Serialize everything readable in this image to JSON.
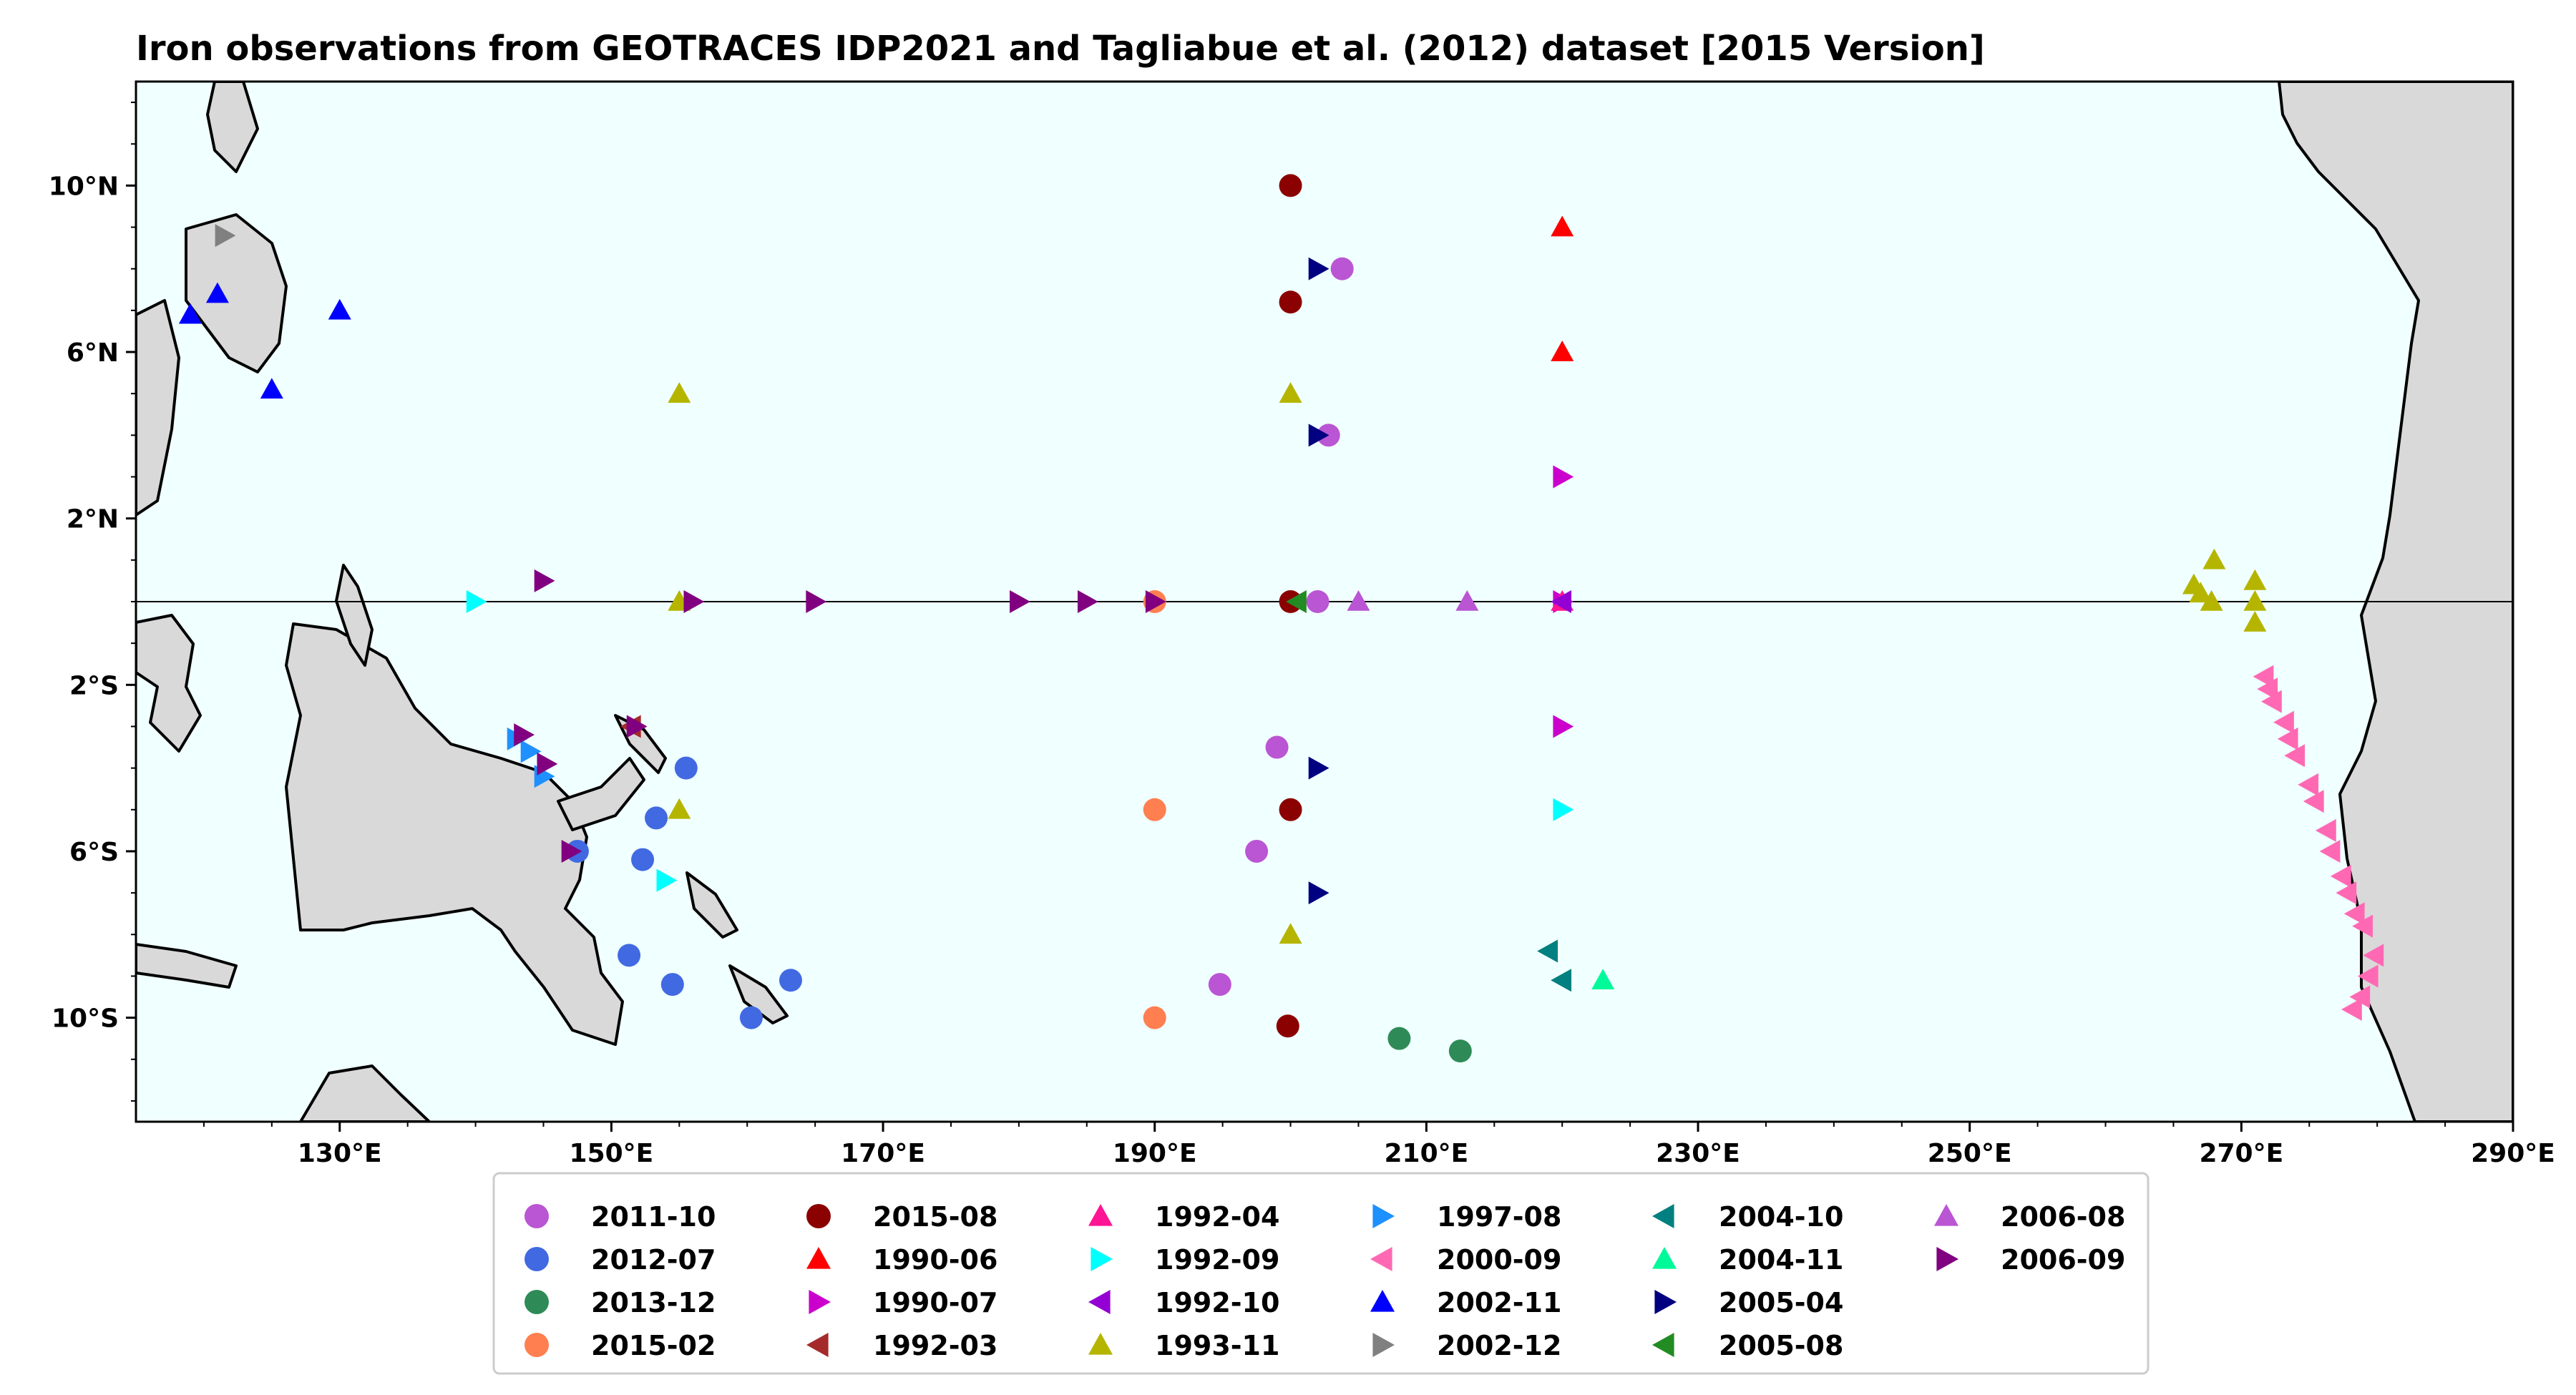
{
  "title": "Iron observations from GEOTRACES IDP2021 and Tagliabue et al. (2012) dataset [2015 Version]",
  "colors": {
    "ocean": "#f0ffff",
    "land": "#d9d9d9",
    "coast": "#000000"
  },
  "chart_data": {
    "type": "scatter",
    "title": "Iron observations from GEOTRACES IDP2021 and Tagliabue et al. (2012) dataset [2015 Version]",
    "xlim": [
      115,
      290
    ],
    "ylim": [
      -12.5,
      12.5
    ],
    "xticks": [
      {
        "value": 130,
        "label": "130°E"
      },
      {
        "value": 150,
        "label": "150°E"
      },
      {
        "value": 170,
        "label": "170°E"
      },
      {
        "value": 190,
        "label": "190°E"
      },
      {
        "value": 210,
        "label": "210°E"
      },
      {
        "value": 230,
        "label": "230°E"
      },
      {
        "value": 250,
        "label": "250°E"
      },
      {
        "value": 270,
        "label": "270°E"
      },
      {
        "value": 290,
        "label": "290°E"
      }
    ],
    "yticks": [
      {
        "value": 10,
        "label": "10°N"
      },
      {
        "value": 6,
        "label": "6°N"
      },
      {
        "value": 2,
        "label": "2°N"
      },
      {
        "value": -2,
        "label": "2°S"
      },
      {
        "value": -6,
        "label": "6°S"
      },
      {
        "value": -10,
        "label": "10°S"
      }
    ],
    "equator_line": 0,
    "legend_position": "bottom-center",
    "series": [
      {
        "name": "2011-10",
        "color": "#ba55d3",
        "marker": "circle",
        "points": [
          [
            199,
            -3.5
          ],
          [
            197.5,
            -6
          ],
          [
            194.8,
            -9.2
          ],
          [
            203.8,
            8
          ],
          [
            202.8,
            4
          ],
          [
            202,
            0
          ]
        ]
      },
      {
        "name": "2012-07",
        "color": "#4169e1",
        "marker": "circle",
        "points": [
          [
            147.5,
            -6
          ],
          [
            151.3,
            -8.5
          ],
          [
            152.3,
            -6.2
          ],
          [
            153.3,
            -5.2
          ],
          [
            155.5,
            -4
          ],
          [
            154.5,
            -9.2
          ],
          [
            160.3,
            -10
          ],
          [
            163.2,
            -9.1
          ]
        ]
      },
      {
        "name": "2013-12",
        "color": "#2e8b57",
        "marker": "circle",
        "points": [
          [
            208,
            -10.5
          ],
          [
            212.5,
            -10.8
          ]
        ]
      },
      {
        "name": "2015-02",
        "color": "#ff7f50",
        "marker": "circle",
        "points": [
          [
            190,
            -5
          ],
          [
            190,
            -10
          ],
          [
            190,
            0
          ]
        ]
      },
      {
        "name": "2015-08",
        "color": "#8b0000",
        "marker": "circle",
        "points": [
          [
            200,
            10
          ],
          [
            200,
            7.2
          ],
          [
            200,
            0
          ],
          [
            200,
            -5
          ],
          [
            199.8,
            -10.2
          ]
        ]
      },
      {
        "name": "1990-06",
        "color": "#ff0000",
        "marker": "triangle-up",
        "points": [
          [
            220,
            9
          ],
          [
            220,
            6
          ]
        ]
      },
      {
        "name": "1990-07",
        "color": "#cc00cc",
        "marker": "triangle-right",
        "points": [
          [
            220,
            3
          ],
          [
            220,
            -3
          ],
          [
            220,
            0
          ]
        ]
      },
      {
        "name": "1992-03",
        "color": "#a52a2a",
        "marker": "triangle-left",
        "points": [
          [
            151.5,
            -3
          ]
        ]
      },
      {
        "name": "1992-04",
        "color": "#ff1493",
        "marker": "triangle-up",
        "points": [
          [
            220,
            0
          ]
        ]
      },
      {
        "name": "1992-09",
        "color": "#00ffff",
        "marker": "triangle-right",
        "points": [
          [
            140,
            0
          ],
          [
            154,
            -6.7
          ],
          [
            220,
            -5
          ]
        ]
      },
      {
        "name": "1992-10",
        "color": "#9400d3",
        "marker": "triangle-left",
        "points": [
          [
            220,
            0
          ]
        ]
      },
      {
        "name": "1993-11",
        "color": "#b5b500",
        "marker": "triangle-up",
        "points": [
          [
            155,
            5
          ],
          [
            155,
            0
          ],
          [
            155,
            -5
          ],
          [
            200,
            5
          ],
          [
            200,
            -8
          ],
          [
            266.5,
            0.4
          ],
          [
            267,
            0.2
          ],
          [
            268,
            1
          ],
          [
            267.8,
            0
          ],
          [
            271,
            0.5
          ],
          [
            271,
            0
          ],
          [
            271,
            -0.5
          ]
        ]
      },
      {
        "name": "1997-08",
        "color": "#1e90ff",
        "marker": "triangle-right",
        "points": [
          [
            143,
            -3.3
          ],
          [
            144,
            -3.6
          ],
          [
            145,
            -4.2
          ]
        ]
      },
      {
        "name": "2000-09",
        "color": "#ff69b4",
        "marker": "triangle-left",
        "points": [
          [
            271.7,
            -1.8
          ],
          [
            272,
            -2.1
          ],
          [
            272.3,
            -2.4
          ],
          [
            273.2,
            -2.9
          ],
          [
            273.5,
            -3.3
          ],
          [
            274,
            -3.7
          ],
          [
            275,
            -4.4
          ],
          [
            275.4,
            -4.8
          ],
          [
            276.3,
            -5.5
          ],
          [
            276.6,
            -6
          ],
          [
            277.4,
            -6.6
          ],
          [
            277.8,
            -7
          ],
          [
            278.4,
            -7.5
          ],
          [
            279,
            -7.8
          ],
          [
            279.8,
            -8.5
          ],
          [
            279.4,
            -9
          ],
          [
            278.8,
            -9.5
          ],
          [
            278.2,
            -9.8
          ]
        ]
      },
      {
        "name": "2002-11",
        "color": "#0000ff",
        "marker": "triangle-up",
        "points": [
          [
            119,
            6.9
          ],
          [
            121,
            7.4
          ],
          [
            130,
            7
          ],
          [
            125,
            5.1
          ]
        ]
      },
      {
        "name": "2002-12",
        "color": "#808080",
        "marker": "triangle-right",
        "points": [
          [
            121.5,
            8.8
          ]
        ]
      },
      {
        "name": "2004-10",
        "color": "#008080",
        "marker": "triangle-left",
        "points": [
          [
            219,
            -8.4
          ],
          [
            220,
            -9.1
          ]
        ]
      },
      {
        "name": "2004-11",
        "color": "#00fa9a",
        "marker": "triangle-up",
        "points": [
          [
            223,
            -9.1
          ]
        ]
      },
      {
        "name": "2005-04",
        "color": "#000080",
        "marker": "triangle-right",
        "points": [
          [
            202,
            8
          ],
          [
            202,
            4
          ],
          [
            202,
            -4
          ],
          [
            202,
            -7
          ]
        ]
      },
      {
        "name": "2005-08",
        "color": "#228b22",
        "marker": "triangle-left",
        "points": [
          [
            200.5,
            0
          ]
        ]
      },
      {
        "name": "2006-08",
        "color": "#ba55d3",
        "marker": "triangle-up",
        "points": [
          [
            205,
            0
          ],
          [
            213,
            0
          ]
        ]
      },
      {
        "name": "2006-09",
        "color": "#800080",
        "marker": "triangle-right",
        "points": [
          [
            145,
            0.5
          ],
          [
            156,
            0
          ],
          [
            165,
            0
          ],
          [
            180,
            0
          ],
          [
            185,
            0
          ],
          [
            190,
            0
          ],
          [
            143.5,
            -3.2
          ],
          [
            145.2,
            -3.9
          ],
          [
            147,
            -6
          ],
          [
            151.8,
            -3
          ]
        ]
      }
    ]
  }
}
